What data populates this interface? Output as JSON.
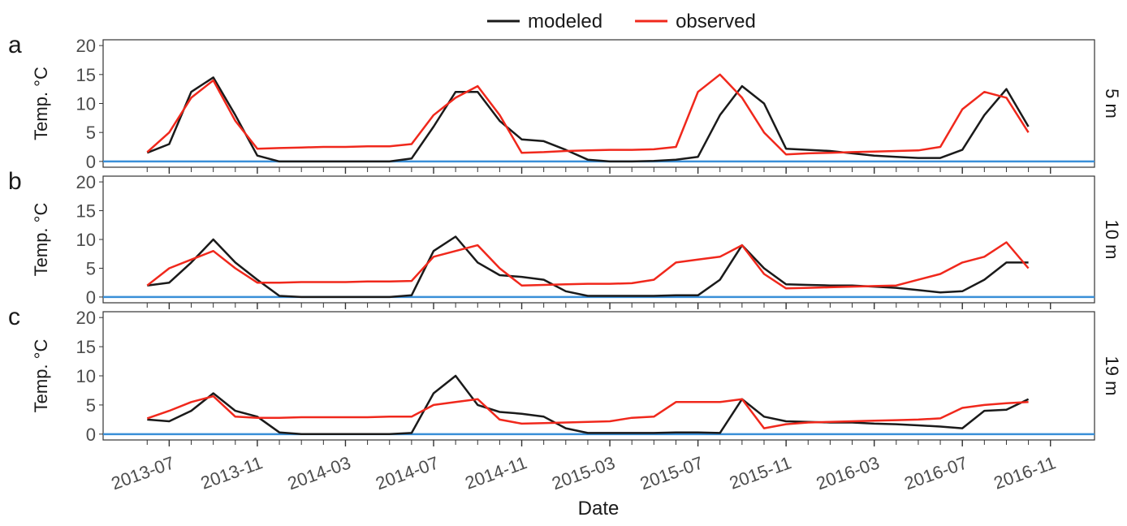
{
  "chart_data": {
    "type": "line",
    "xlabel": "Date",
    "ylabel": "Temp. °C",
    "x": [
      "2013-06",
      "2013-07",
      "2013-08",
      "2013-09",
      "2013-10",
      "2013-11",
      "2013-12",
      "2014-01",
      "2014-02",
      "2014-03",
      "2014-04",
      "2014-05",
      "2014-06",
      "2014-07",
      "2014-08",
      "2014-09",
      "2014-10",
      "2014-11",
      "2014-12",
      "2015-01",
      "2015-02",
      "2015-03",
      "2015-04",
      "2015-05",
      "2015-06",
      "2015-07",
      "2015-08",
      "2015-09",
      "2015-10",
      "2015-11",
      "2015-12",
      "2016-01",
      "2016-02",
      "2016-03",
      "2016-04",
      "2016-05",
      "2016-06",
      "2016-07",
      "2016-08",
      "2016-09",
      "2016-10"
    ],
    "xlim": [
      "2013-04",
      "2017-01"
    ],
    "xticks": [
      "2013-07",
      "2013-11",
      "2014-03",
      "2014-07",
      "2014-11",
      "2015-03",
      "2015-07",
      "2015-11",
      "2016-03",
      "2016-07",
      "2016-11"
    ],
    "ylim": [
      -1,
      21
    ],
    "yticks": [
      0,
      5,
      10,
      15,
      20
    ],
    "hline": 0,
    "hline_color": "#3a8fd8",
    "legend": "top",
    "series": [
      {
        "name": "modeled",
        "color": "#1a1a1a"
      },
      {
        "name": "observed",
        "color": "#f0281c"
      }
    ],
    "panels": [
      {
        "tag": "a",
        "label": "5 m",
        "values": [
          [
            1.5,
            3,
            12,
            14.5,
            8,
            1,
            0,
            0,
            0,
            0,
            0,
            0,
            0.5,
            6,
            12,
            12,
            7,
            3.8,
            3.5,
            2,
            0.3,
            0,
            0,
            0.1,
            0.3,
            0.8,
            8,
            13,
            10,
            2.2,
            2,
            1.8,
            1.4,
            1,
            0.8,
            0.6,
            0.6,
            2,
            8,
            12.5,
            6
          ],
          [
            1.6,
            5,
            11,
            14,
            7,
            2.2,
            2.3,
            2.4,
            2.5,
            2.5,
            2.6,
            2.6,
            3,
            8,
            11,
            13,
            8,
            1.5,
            1.6,
            1.8,
            1.9,
            2,
            2,
            2.1,
            2.5,
            12,
            15,
            11,
            5,
            1.2,
            1.4,
            1.5,
            1.6,
            1.7,
            1.8,
            1.9,
            2.5,
            9,
            12,
            11,
            5
          ]
        ]
      },
      {
        "tag": "b",
        "label": "10 m",
        "values": [
          [
            2,
            2.5,
            6,
            10,
            6,
            3,
            0.2,
            0,
            0,
            0,
            0,
            0,
            0.3,
            8,
            10.5,
            6,
            3.8,
            3.5,
            3,
            1,
            0.2,
            0.2,
            0.2,
            0.2,
            0.3,
            0.3,
            3,
            9,
            5,
            2.2,
            2.1,
            2,
            2,
            1.8,
            1.6,
            1.2,
            0.8,
            1,
            3,
            6,
            6
          ],
          [
            2,
            5,
            6.5,
            8,
            5,
            2.5,
            2.5,
            2.6,
            2.6,
            2.6,
            2.7,
            2.7,
            2.8,
            7,
            8,
            9,
            5,
            2,
            2.1,
            2.2,
            2.3,
            2.3,
            2.4,
            3,
            6,
            6.5,
            7,
            9,
            4,
            1.5,
            1.6,
            1.7,
            1.8,
            1.9,
            2,
            3,
            4,
            6,
            7,
            9.5,
            5
          ]
        ]
      },
      {
        "tag": "c",
        "label": "19 m",
        "values": [
          [
            2.5,
            2.2,
            4,
            7,
            4,
            3,
            0.3,
            0,
            0,
            0,
            0,
            0,
            0.2,
            7,
            10,
            5,
            3.8,
            3.5,
            3,
            1,
            0.2,
            0.2,
            0.2,
            0.2,
            0.3,
            0.3,
            0.2,
            6,
            3,
            2.2,
            2.1,
            2,
            2,
            1.8,
            1.7,
            1.5,
            1.3,
            1,
            4,
            4.2,
            6
          ],
          [
            2.7,
            4,
            5.5,
            6.5,
            3,
            2.8,
            2.8,
            2.9,
            2.9,
            2.9,
            2.9,
            3,
            3,
            5,
            5.5,
            6,
            2.5,
            1.8,
            1.9,
            2,
            2.1,
            2.2,
            2.8,
            3,
            5.5,
            5.5,
            5.5,
            6,
            1,
            1.7,
            2,
            2.1,
            2.2,
            2.3,
            2.4,
            2.5,
            2.7,
            4.5,
            5,
            5.3,
            5.5
          ]
        ]
      }
    ]
  }
}
